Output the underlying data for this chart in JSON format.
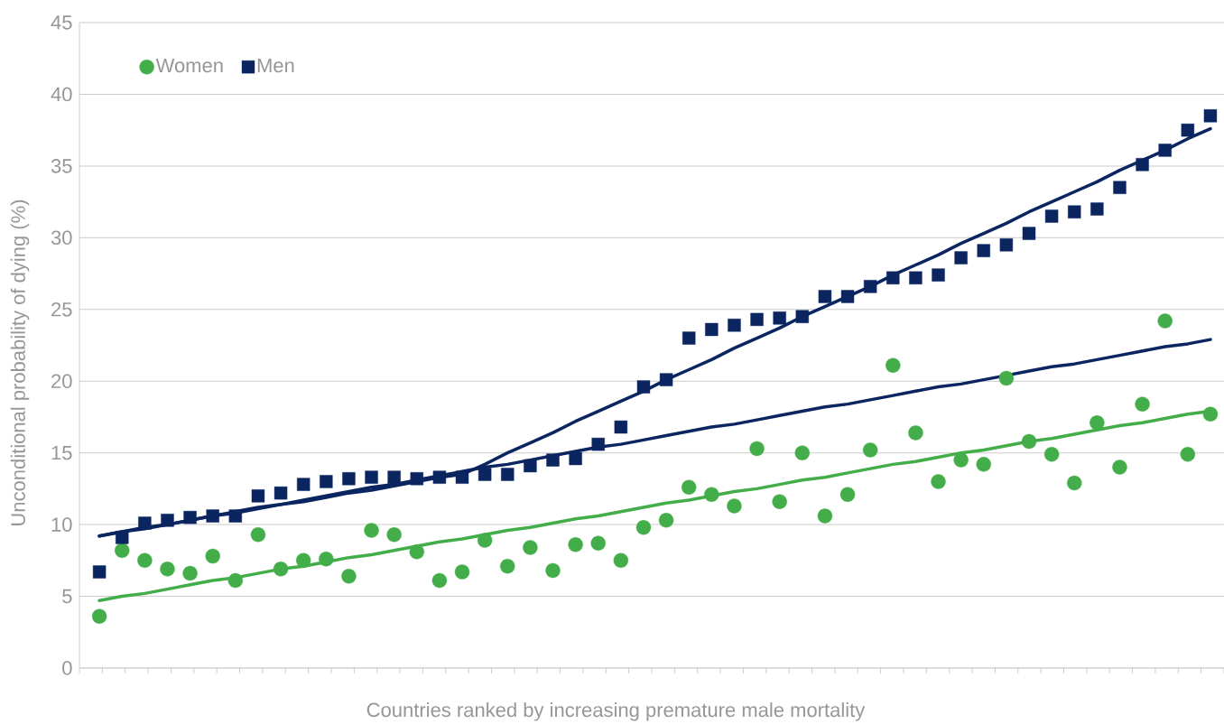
{
  "chart_data": {
    "type": "scatter",
    "xlabel": "Countries ranked by increasing premature male mortality",
    "ylabel": "Unconditional probability of dying (%)",
    "categories": [
      null,
      null,
      null,
      null,
      null,
      null,
      null,
      null,
      null,
      null,
      null,
      null,
      null,
      null,
      null,
      null,
      null,
      null,
      null,
      null,
      null,
      null,
      null,
      null,
      null,
      null,
      null,
      null,
      null,
      null,
      null,
      null,
      null,
      null,
      null,
      null,
      null,
      null,
      null,
      null,
      null,
      null,
      null,
      null,
      null,
      null,
      null,
      null,
      null,
      null
    ],
    "ylim": [
      0,
      45
    ],
    "yticks": [
      0,
      5,
      10,
      15,
      20,
      25,
      30,
      35,
      40,
      45
    ],
    "grid": "y",
    "legend": "top left",
    "series": [
      {
        "name": "Women",
        "marker": "circle",
        "color": "#43ad49",
        "values": [
          3.6,
          8.2,
          7.5,
          6.9,
          6.6,
          7.8,
          6.1,
          9.3,
          6.9,
          7.5,
          7.6,
          6.4,
          9.6,
          9.3,
          8.1,
          6.1,
          6.7,
          8.9,
          7.1,
          8.4,
          6.8,
          8.6,
          8.7,
          7.5,
          9.8,
          10.3,
          12.6,
          12.1,
          11.3,
          15.3,
          11.6,
          15.0,
          10.6,
          12.1,
          15.2,
          21.1,
          16.4,
          13.0,
          14.5,
          14.2,
          20.2,
          15.8,
          14.9,
          12.9,
          17.1,
          14.0,
          18.4,
          24.2,
          14.9,
          17.7
        ]
      },
      {
        "name": "Men",
        "marker": "square",
        "color": "#0a2560",
        "values": [
          6.7,
          9.1,
          10.1,
          10.3,
          10.5,
          10.6,
          10.6,
          12.0,
          12.2,
          12.8,
          13.0,
          13.2,
          13.3,
          13.3,
          13.2,
          13.3,
          13.3,
          13.5,
          13.5,
          14.1,
          14.5,
          14.6,
          15.6,
          16.8,
          19.6,
          20.1,
          23.0,
          23.6,
          23.9,
          24.3,
          24.4,
          24.5,
          25.9,
          25.9,
          26.6,
          27.2,
          27.2,
          27.4,
          28.6,
          29.1,
          29.5,
          30.3,
          31.5,
          31.8,
          32.0,
          33.5,
          35.1,
          36.1,
          37.5,
          38.5
        ]
      },
      {
        "type": "line",
        "color": "#43ad49",
        "values": [
          4.7,
          5.0,
          5.2,
          5.5,
          5.8,
          6.1,
          6.3,
          6.6,
          6.9,
          7.1,
          7.4,
          7.7,
          7.9,
          8.2,
          8.5,
          8.8,
          9.0,
          9.3,
          9.6,
          9.8,
          10.1,
          10.4,
          10.6,
          10.9,
          11.2,
          11.5,
          11.7,
          12.0,
          12.3,
          12.5,
          12.8,
          13.1,
          13.3,
          13.6,
          13.9,
          14.2,
          14.4,
          14.7,
          15.0,
          15.2,
          15.5,
          15.8,
          16.0,
          16.3,
          16.6,
          16.9,
          17.1,
          17.4,
          17.7,
          17.9
        ]
      },
      {
        "type": "line",
        "color": "#0a2560",
        "values": [
          9.2,
          9.5,
          9.8,
          10.0,
          10.3,
          10.6,
          10.9,
          11.2,
          11.4,
          11.7,
          12.0,
          12.3,
          12.6,
          12.8,
          13.1,
          13.4,
          13.7,
          14.0,
          14.2,
          14.5,
          14.8,
          15.1,
          15.4,
          15.6,
          15.9,
          16.2,
          16.5,
          16.8,
          17.0,
          17.3,
          17.6,
          17.9,
          18.2,
          18.4,
          18.7,
          19.0,
          19.3,
          19.6,
          19.8,
          20.1,
          20.4,
          20.7,
          21.0,
          21.2,
          21.5,
          21.8,
          22.1,
          22.4,
          22.6,
          22.9
        ]
      },
      {
        "type": "line",
        "color": "#0a2560",
        "values": [
          9.2,
          9.5,
          9.7,
          10.0,
          10.3,
          10.6,
          10.8,
          11.1,
          11.4,
          11.6,
          11.9,
          12.2,
          12.4,
          12.7,
          13.0,
          13.3,
          13.5,
          14.2,
          15.0,
          15.7,
          16.4,
          17.2,
          17.9,
          18.6,
          19.3,
          20.1,
          20.8,
          21.5,
          22.3,
          23.0,
          23.7,
          24.5,
          25.2,
          25.9,
          26.6,
          27.4,
          28.1,
          28.8,
          29.6,
          30.3,
          31.0,
          31.8,
          32.5,
          33.2,
          33.9,
          34.7,
          35.4,
          36.1,
          36.9,
          37.6
        ]
      }
    ]
  }
}
